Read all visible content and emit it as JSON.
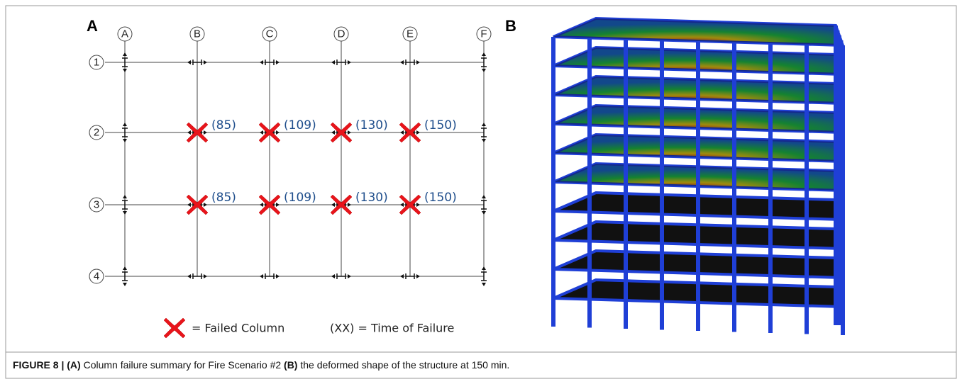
{
  "panel_a": {
    "label": "A",
    "column_labels": [
      "A",
      "B",
      "C",
      "D",
      "E",
      "F"
    ],
    "row_labels": [
      "1",
      "2",
      "3",
      "4"
    ],
    "failure_times": [
      [
        "(85)",
        "(109)",
        "(130)",
        "(150)"
      ],
      [
        "(85)",
        "(109)",
        "(130)",
        "(150)"
      ]
    ],
    "legend": {
      "failed": "= Failed Column",
      "time": "(XX) = Time of Failure"
    }
  },
  "panel_b": {
    "label": "B"
  },
  "caption": {
    "bold1": "FIGURE 8 | (A)",
    "text1": " Column failure summary for Fire Scenario #2 ",
    "bold2": "(B)",
    "text2": " the deformed shape of the structure at 150 min."
  }
}
